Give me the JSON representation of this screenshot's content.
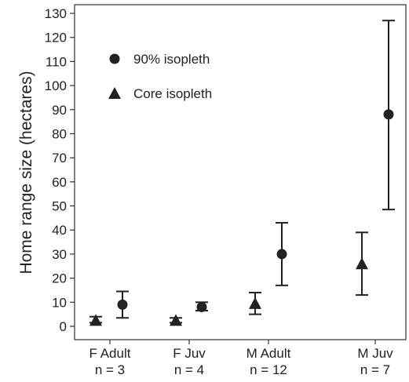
{
  "chart_data": {
    "type": "scatter",
    "title": "",
    "xlabel": "",
    "ylabel": "Home range size (hectares)",
    "ylim": [
      -5,
      132
    ],
    "yticks": [
      0,
      10,
      20,
      30,
      40,
      50,
      60,
      70,
      80,
      90,
      100,
      110,
      120,
      130
    ],
    "grid": false,
    "legend_position": "top-left",
    "categories": [
      {
        "line1": "F Adult",
        "line2": "n = 3"
      },
      {
        "line1": "F Juv",
        "line2": "n = 4"
      },
      {
        "line1": "M Adult",
        "line2": "n = 12"
      },
      {
        "line1": "M Juv",
        "line2": "n = 7"
      }
    ],
    "series": [
      {
        "name": "90% isopleth",
        "marker": "circle",
        "color": "#222222",
        "points": [
          {
            "category": "F Adult",
            "value": 9,
            "lower": 3.5,
            "upper": 14.5
          },
          {
            "category": "F Juv",
            "value": 8,
            "lower": 6.5,
            "upper": 10
          },
          {
            "category": "M Adult",
            "value": 30,
            "lower": 17,
            "upper": 43
          },
          {
            "category": "M Juv",
            "value": 88,
            "lower": 48.5,
            "upper": 127
          }
        ]
      },
      {
        "name": "Core isopleth",
        "marker": "triangle",
        "color": "#222222",
        "points": [
          {
            "category": "F Adult",
            "value": 2.5,
            "lower": 1.5,
            "upper": 4
          },
          {
            "category": "F Juv",
            "value": 2.5,
            "lower": 1.5,
            "upper": 3.5
          },
          {
            "category": "M Adult",
            "value": 9.5,
            "lower": 5,
            "upper": 14
          },
          {
            "category": "M Juv",
            "value": 26,
            "lower": 13,
            "upper": 39
          }
        ]
      }
    ]
  }
}
